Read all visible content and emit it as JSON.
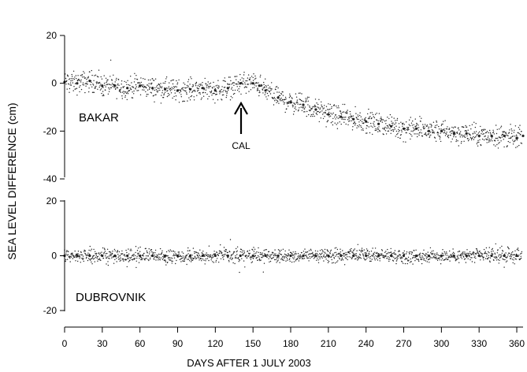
{
  "chart_data": [
    {
      "type": "scatter",
      "panel": "top",
      "station_label": "BAKAR",
      "annotation": {
        "text": "CAL",
        "x": 142,
        "y": -13
      },
      "ylim": [
        -40,
        20
      ],
      "yticks": [
        -40,
        -20,
        0,
        20
      ],
      "xlim": [
        0,
        365
      ],
      "series": [
        {
          "points": [
            [
              0,
              0.5
            ],
            [
              10,
              0
            ],
            [
              20,
              1
            ],
            [
              30,
              -1
            ],
            [
              40,
              -1
            ],
            [
              50,
              -2
            ],
            [
              60,
              -1
            ],
            [
              70,
              -2
            ],
            [
              80,
              -2.5
            ],
            [
              90,
              -3
            ],
            [
              100,
              -2.5
            ],
            [
              110,
              -2
            ],
            [
              120,
              -3
            ],
            [
              130,
              -2
            ],
            [
              140,
              0
            ],
            [
              150,
              0
            ],
            [
              155,
              -1
            ],
            [
              160,
              -3
            ],
            [
              170,
              -6
            ],
            [
              180,
              -8
            ],
            [
              190,
              -9
            ],
            [
              200,
              -11
            ],
            [
              210,
              -13
            ],
            [
              220,
              -14
            ],
            [
              230,
              -15
            ],
            [
              240,
              -16
            ],
            [
              250,
              -17
            ],
            [
              260,
              -18
            ],
            [
              270,
              -19
            ],
            [
              280,
              -19
            ],
            [
              290,
              -20
            ],
            [
              300,
              -20
            ],
            [
              310,
              -21
            ],
            [
              320,
              -21
            ],
            [
              330,
              -22
            ],
            [
              340,
              -22
            ],
            [
              350,
              -22
            ],
            [
              360,
              -23
            ],
            [
              365,
              -22
            ]
          ]
        }
      ]
    },
    {
      "type": "scatter",
      "panel": "bottom",
      "station_label": "DUBROVNIK",
      "ylim": [
        -20,
        20
      ],
      "yticks": [
        -20,
        0,
        20
      ],
      "xlim": [
        0,
        365
      ],
      "series": [
        {
          "points": [
            [
              0,
              0
            ],
            [
              10,
              0
            ],
            [
              20,
              0
            ],
            [
              30,
              0
            ],
            [
              40,
              0
            ],
            [
              50,
              0
            ],
            [
              60,
              0
            ],
            [
              70,
              0
            ],
            [
              80,
              0
            ],
            [
              90,
              0
            ],
            [
              100,
              0
            ],
            [
              110,
              0
            ],
            [
              120,
              0
            ],
            [
              130,
              0
            ],
            [
              140,
              0
            ],
            [
              150,
              0
            ],
            [
              160,
              0
            ],
            [
              170,
              0
            ],
            [
              180,
              0
            ],
            [
              190,
              0
            ],
            [
              200,
              0
            ],
            [
              210,
              0
            ],
            [
              220,
              0
            ],
            [
              230,
              0
            ],
            [
              240,
              0
            ],
            [
              250,
              0
            ],
            [
              260,
              0
            ],
            [
              270,
              0
            ],
            [
              280,
              0
            ],
            [
              290,
              0
            ],
            [
              300,
              0
            ],
            [
              310,
              0
            ],
            [
              320,
              0
            ],
            [
              330,
              0
            ],
            [
              340,
              0
            ],
            [
              350,
              0
            ],
            [
              360,
              0
            ]
          ]
        }
      ]
    }
  ],
  "axes": {
    "ylabel": "SEA LEVEL DIFFERENCE (cm)",
    "xlabel": "DAYS AFTER 1 JULY 2003",
    "xticks": [
      0,
      30,
      60,
      90,
      120,
      150,
      180,
      210,
      240,
      270,
      300,
      330,
      360
    ],
    "xlim": [
      0,
      365
    ]
  },
  "colors": {
    "points": "#222222",
    "axis": "#000000",
    "background": "#ffffff"
  }
}
